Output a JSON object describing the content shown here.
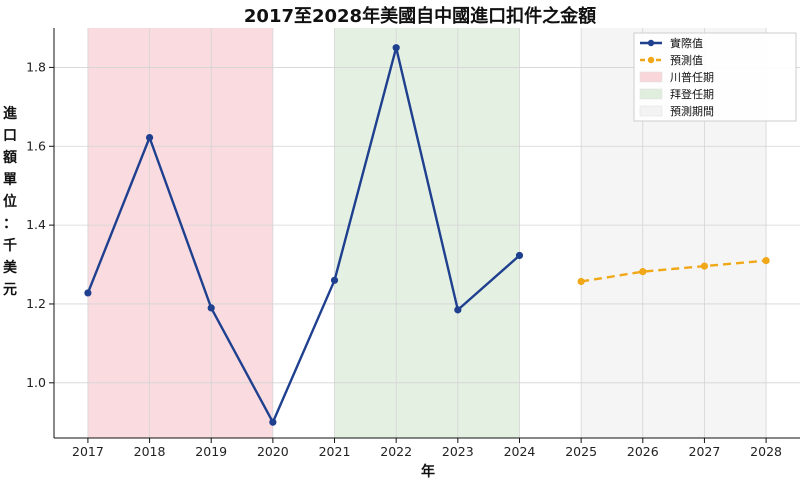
{
  "chart_data": {
    "type": "line",
    "title": "2017至2028年美國自中國進口扣件之金額",
    "xlabel": "年",
    "ylabel": "進口額單位：千美元",
    "x": [
      2017,
      2018,
      2019,
      2020,
      2021,
      2022,
      2023,
      2024,
      2025,
      2026,
      2027,
      2028
    ],
    "xlim": [
      2016.45,
      2028.55
    ],
    "ylim": [
      0.86,
      1.9
    ],
    "yticks": [
      1.0,
      1.2,
      1.4,
      1.6,
      1.8
    ],
    "grid": true,
    "legend_position": "top-right",
    "series": [
      {
        "name": "實際值",
        "color": "#1f3f8f",
        "style": "solid",
        "x": [
          2017,
          2018,
          2019,
          2020,
          2021,
          2022,
          2023,
          2024
        ],
        "values": [
          1.228,
          1.622,
          1.19,
          0.9,
          1.26,
          1.85,
          1.185,
          1.323
        ]
      },
      {
        "name": "預測值",
        "color": "#f0a818",
        "style": "dashed",
        "x": [
          2025,
          2026,
          2027,
          2028
        ],
        "values": [
          1.257,
          1.282,
          1.296,
          1.31
        ]
      }
    ],
    "bands": [
      {
        "name": "川普任期",
        "from": 2017,
        "to": 2020,
        "color": "#f9d6da"
      },
      {
        "name": "拜登任期",
        "from": 2021,
        "to": 2024,
        "color": "#dfeedd"
      },
      {
        "name": "預測期間",
        "from": 2025,
        "to": 2028,
        "color": "#f3f3f3"
      }
    ]
  }
}
